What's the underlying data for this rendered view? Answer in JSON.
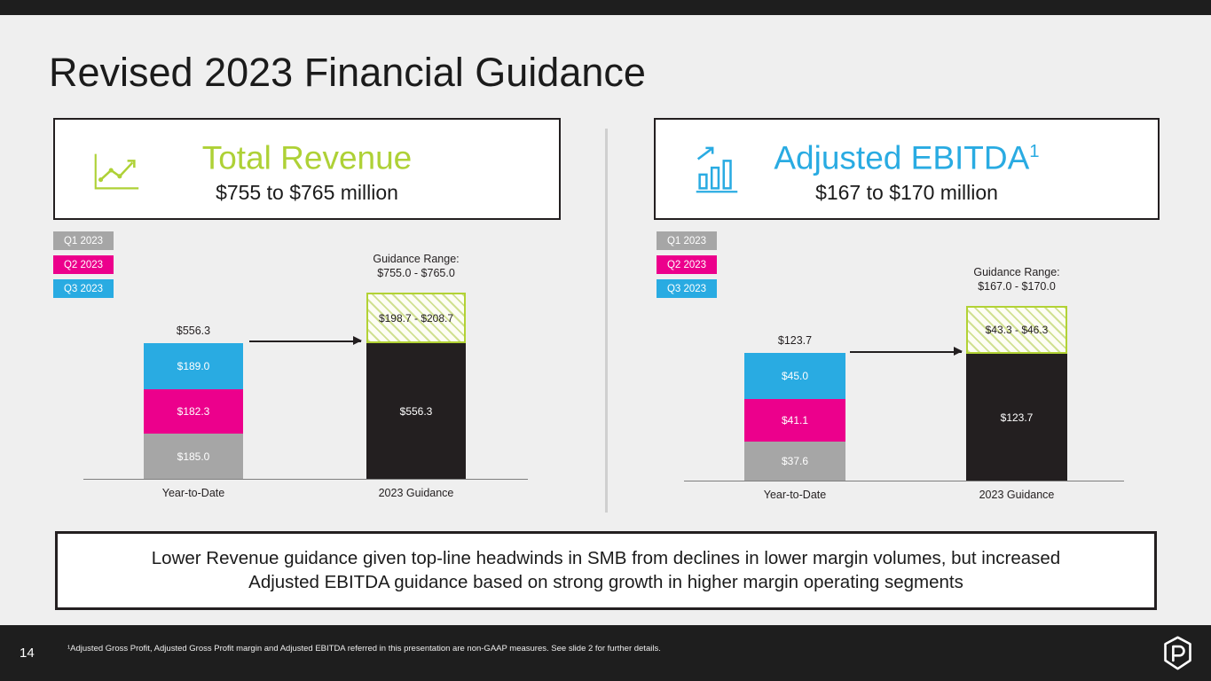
{
  "slide": {
    "title": "Revised 2023 Financial Guidance",
    "page_number": "14",
    "footnote": "¹Adjusted Gross Profit, Adjusted Gross Profit margin and Adjusted EBITDA referred in this presentation are non-GAAP measures. See slide 2 for further details."
  },
  "panels": [
    {
      "title": "Total Revenue",
      "sup": "",
      "range": "$755 to $765 million",
      "accent": "#aed136",
      "icon": "line-chart-icon"
    },
    {
      "title": "Adjusted EBITDA",
      "sup": "1",
      "range": "$167 to $170 million",
      "accent": "#29abe2",
      "icon": "bar-chart-icon"
    }
  ],
  "callout": {
    "line1": "Lower Revenue guidance given top-line headwinds in SMB from declines in lower margin volumes, but increased",
    "line2": "Adjusted EBITDA guidance based on strong growth in higher margin operating segments"
  },
  "chart_data": [
    {
      "type": "bar",
      "title": "Total Revenue",
      "subtitle": "$755 to $765 million",
      "categories": [
        "Year-to-Date",
        "2023 Guidance"
      ],
      "legend": [
        {
          "label": "Q1 2023",
          "color": "#a6a6a6"
        },
        {
          "label": "Q2 2023",
          "color": "#ec008c"
        },
        {
          "label": "Q3 2023",
          "color": "#29abe2"
        }
      ],
      "ytd": {
        "total_label": "$556.3",
        "segments": [
          {
            "name": "Q1 2023",
            "value": 185.0,
            "label": "$185.0",
            "color": "#a6a6a6"
          },
          {
            "name": "Q2 2023",
            "value": 182.3,
            "label": "$182.3",
            "color": "#ec008c"
          },
          {
            "name": "Q3 2023",
            "value": 189.0,
            "label": "$189.0",
            "color": "#29abe2"
          }
        ]
      },
      "guidance": {
        "note": "Guidance Range:",
        "range_text": "$755.0 - $765.0",
        "base_value": 556.3,
        "base_label": "$556.3",
        "range_increment_low": 198.7,
        "range_increment_high": 208.7,
        "range_label": "$198.7 - $208.7",
        "color": "#231f20"
      },
      "ylim": [
        0,
        800
      ]
    },
    {
      "type": "bar",
      "title": "Adjusted EBITDA",
      "subtitle": "$167 to $170 million",
      "categories": [
        "Year-to-Date",
        "2023 Guidance"
      ],
      "legend": [
        {
          "label": "Q1 2023",
          "color": "#a6a6a6"
        },
        {
          "label": "Q2 2023",
          "color": "#ec008c"
        },
        {
          "label": "Q3 2023",
          "color": "#29abe2"
        }
      ],
      "ytd": {
        "total_label": "$123.7",
        "segments": [
          {
            "name": "Q1 2023",
            "value": 37.6,
            "label": "$37.6",
            "color": "#a6a6a6"
          },
          {
            "name": "Q2 2023",
            "value": 41.1,
            "label": "$41.1",
            "color": "#ec008c"
          },
          {
            "name": "Q3 2023",
            "value": 45.0,
            "label": "$45.0",
            "color": "#29abe2"
          }
        ]
      },
      "guidance": {
        "note": "Guidance Range:",
        "range_text": "$167.0 - $170.0",
        "base_value": 123.7,
        "base_label": "$123.7",
        "range_increment_low": 43.3,
        "range_increment_high": 46.3,
        "range_label": "$43.3 - $46.3",
        "color": "#231f20"
      },
      "ylim": [
        0,
        190
      ]
    }
  ]
}
